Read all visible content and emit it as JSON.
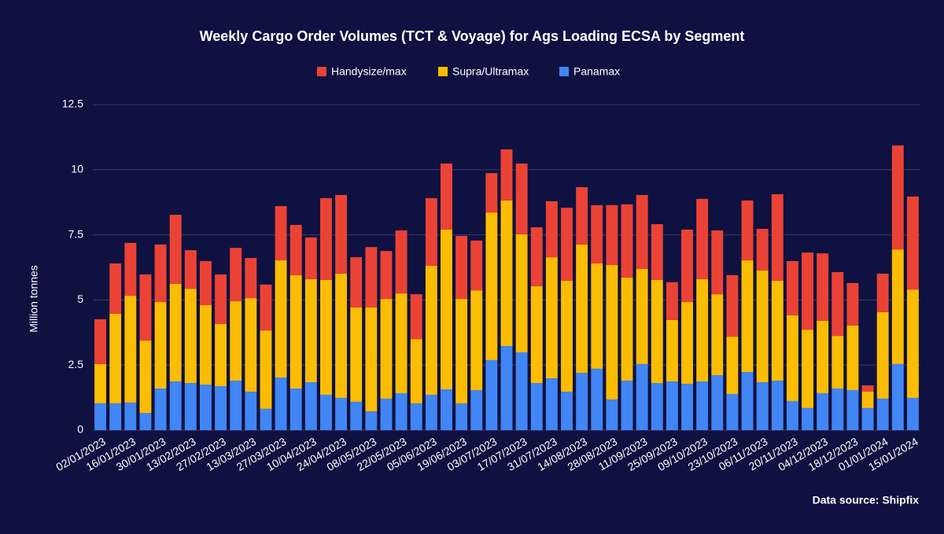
{
  "chart_data": {
    "type": "stacked_bar",
    "title": "Weekly Cargo Order Volumes (TCT & Voyage) for Ags Loading ECSA by Segment",
    "y_label": "Million tonnes",
    "source": "Data source: Shipfix",
    "categories": [
      "02/01/2023",
      null,
      "16/01/2023",
      null,
      "30/01/2023",
      null,
      "13/02/2023",
      null,
      "27/02/2023",
      null,
      "13/03/2023",
      null,
      "27/03/2023",
      null,
      "10/04/2023",
      null,
      "24/04/2023",
      null,
      "08/05/2023",
      null,
      "22/05/2023",
      null,
      "05/06/2023",
      null,
      "19/06/2023",
      null,
      "03/07/2023",
      null,
      "17/07/2023",
      null,
      "31/07/2023",
      null,
      "14/08/2023",
      null,
      "28/08/2023",
      null,
      "11/09/2023",
      null,
      "25/09/2023",
      null,
      "09/10/2023",
      null,
      "23/10/2023",
      null,
      "06/11/2023",
      null,
      "20/11/2023",
      null,
      "04/12/2023",
      null,
      "18/12/2023",
      null,
      "01/01/2024",
      null,
      "15/01/2024"
    ],
    "series": [
      {
        "name": "Handysize/max",
        "color": "#ea4335",
        "values": [
          1.72,
          1.93,
          2.03,
          2.54,
          2.21,
          2.65,
          1.48,
          1.69,
          1.9,
          2.05,
          1.54,
          1.76,
          2.08,
          1.93,
          1.6,
          3.14,
          3.02,
          1.93,
          2.32,
          1.84,
          2.42,
          1.72,
          2.6,
          2.54,
          2.42,
          1.91,
          1.51,
          1.96,
          2.72,
          2.26,
          2.15,
          2.8,
          2.2,
          2.24,
          2.3,
          2.81,
          2.84,
          2.14,
          1.45,
          2.78,
          3.08,
          2.45,
          2.36,
          2.3,
          1.6,
          3.32,
          2.08,
          2.96,
          2.59,
          2.45,
          1.63,
          0.24,
          1.48,
          3.99,
          3.57
        ]
      },
      {
        "name": "Supra/Ultramax",
        "color": "#fbbc04",
        "values": [
          1.51,
          3.44,
          4.1,
          2.78,
          3.32,
          3.75,
          3.62,
          3.05,
          2.39,
          3.05,
          3.59,
          3.01,
          4.5,
          4.35,
          3.96,
          4.41,
          4.77,
          3.62,
          3.99,
          3.83,
          3.83,
          2.47,
          4.95,
          6.13,
          4.01,
          3.83,
          5.67,
          5.59,
          4.53,
          3.72,
          4.65,
          4.26,
          4.93,
          4.04,
          5.16,
          3.96,
          3.65,
          3.96,
          2.36,
          3.14,
          3.93,
          3.11,
          2.2,
          4.29,
          4.29,
          3.84,
          3.29,
          3.01,
          2.78,
          2.02,
          2.48,
          0.63,
          3.32,
          4.4,
          4.16
        ]
      },
      {
        "name": "Panamax",
        "color": "#4285f4",
        "values": [
          1.03,
          1.03,
          1.06,
          0.66,
          1.6,
          1.87,
          1.81,
          1.75,
          1.69,
          1.9,
          1.48,
          0.82,
          2.02,
          1.6,
          1.84,
          1.36,
          1.24,
          1.09,
          0.72,
          1.21,
          1.42,
          1.03,
          1.36,
          1.57,
          1.03,
          1.54,
          2.69,
          3.23,
          2.99,
          1.81,
          1.99,
          1.48,
          2.2,
          2.36,
          1.18,
          1.9,
          2.54,
          1.81,
          1.87,
          1.78,
          1.87,
          2.11,
          1.39,
          2.23,
          1.84,
          1.9,
          1.12,
          0.85,
          1.42,
          1.6,
          1.54,
          0.85,
          1.21,
          2.54,
          1.24
        ]
      }
    ],
    "ylim": [
      0,
      12.5
    ],
    "yticks": [
      0,
      2.5,
      5,
      7.5,
      10,
      12.5
    ],
    "grid": true,
    "legend": "top"
  }
}
